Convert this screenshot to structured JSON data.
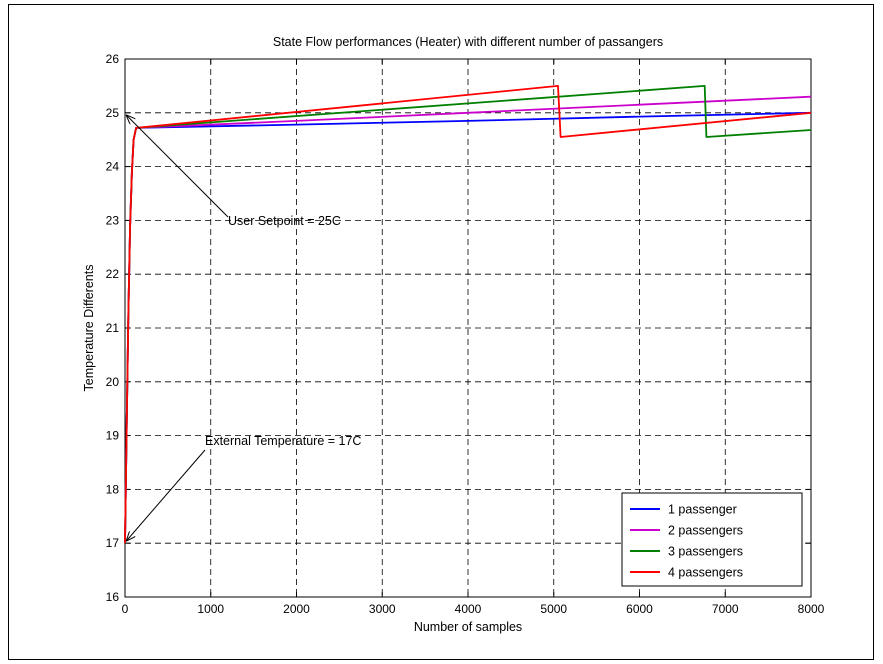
{
  "chart_data": {
    "type": "line",
    "title": "State Flow performances (Heater) with different number of passangers",
    "xlabel": "Number of samples",
    "ylabel": "Temperature Differents",
    "xlim": [
      0,
      8000
    ],
    "ylim": [
      16,
      26
    ],
    "xticks": [
      0,
      1000,
      2000,
      3000,
      4000,
      5000,
      6000,
      7000,
      8000
    ],
    "yticks": [
      16,
      17,
      18,
      19,
      20,
      21,
      22,
      23,
      24,
      25,
      26
    ],
    "grid": true,
    "legend_position": "bottom-right",
    "series": [
      {
        "name": "1 passenger",
        "color": "#0000ff",
        "x": [
          0,
          20,
          40,
          60,
          80,
          100,
          130,
          2000,
          4000,
          6000,
          8000
        ],
        "y": [
          17.0,
          19.2,
          21.3,
          22.9,
          23.9,
          24.5,
          24.72,
          24.78,
          24.85,
          24.93,
          25.0
        ]
      },
      {
        "name": "2 passengers",
        "color": "#cc00cc",
        "x": [
          0,
          20,
          40,
          60,
          80,
          100,
          130,
          2000,
          4000,
          6000,
          8000
        ],
        "y": [
          17.0,
          19.2,
          21.3,
          22.9,
          23.9,
          24.5,
          24.72,
          24.85,
          25.0,
          25.15,
          25.3
        ]
      },
      {
        "name": "3 passengers",
        "color": "#008000",
        "x": [
          0,
          20,
          40,
          60,
          80,
          100,
          130,
          6760,
          6780,
          8000
        ],
        "y": [
          17.0,
          19.2,
          21.3,
          22.9,
          23.9,
          24.5,
          24.72,
          25.5,
          24.55,
          24.68
        ]
      },
      {
        "name": "4 passengers",
        "color": "#ff0000",
        "x": [
          0,
          20,
          40,
          60,
          80,
          100,
          130,
          5050,
          5080,
          8000
        ],
        "y": [
          17.0,
          19.2,
          21.3,
          22.9,
          23.9,
          24.5,
          24.72,
          25.5,
          24.55,
          25.0
        ]
      }
    ],
    "annotations": [
      {
        "text": "User Setpoint = 25C",
        "arrow_to": [
          20,
          24.95
        ]
      },
      {
        "text": "External Temperature = 17C",
        "arrow_to": [
          20,
          17.05
        ]
      }
    ]
  }
}
